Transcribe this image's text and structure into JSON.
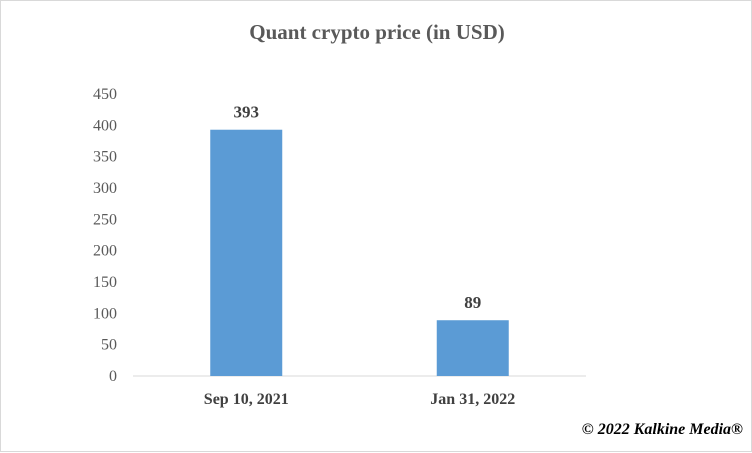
{
  "chart_data": {
    "type": "bar",
    "title": "Quant crypto price (in USD)",
    "categories": [
      "Sep 10, 2021",
      "Jan 31, 2022"
    ],
    "values": [
      393,
      89
    ],
    "data_labels": [
      "393",
      "89"
    ],
    "ylim": [
      0,
      450
    ],
    "yticks": [
      "0",
      "50",
      "100",
      "150",
      "200",
      "250",
      "300",
      "350",
      "400",
      "450"
    ],
    "grid": false,
    "legend": "none",
    "bar_color": "#5b9bd5"
  },
  "watermark": "© 2022 Kalkine Media®"
}
